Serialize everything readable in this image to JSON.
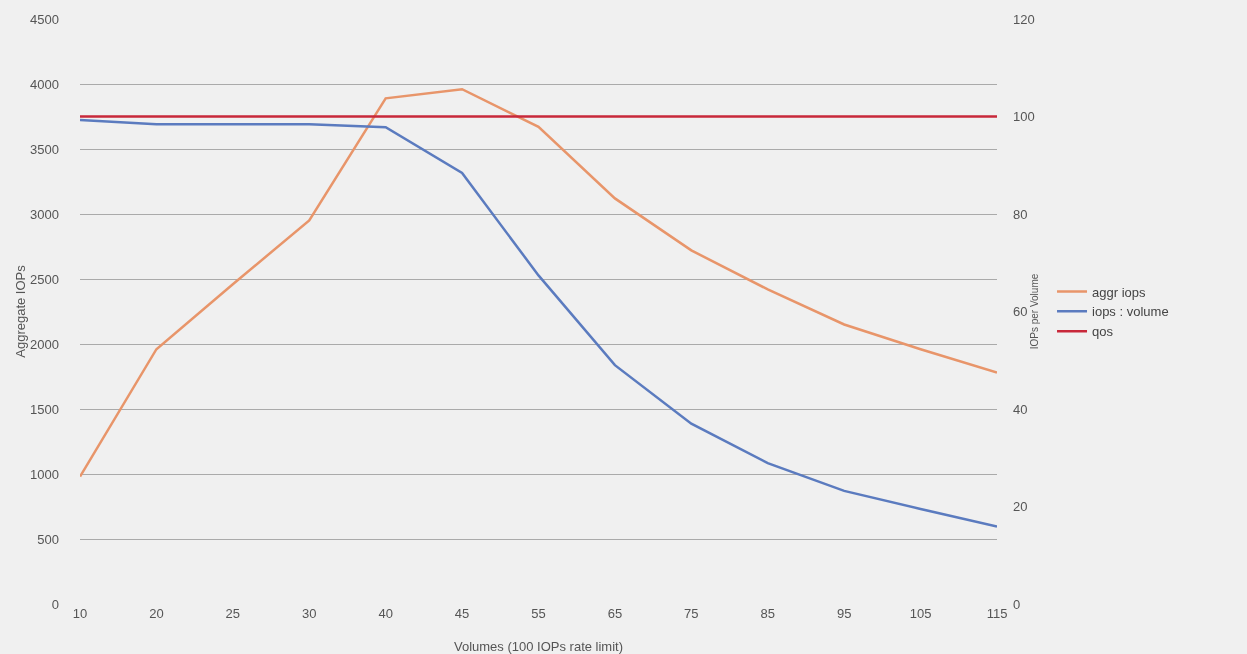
{
  "chart_data": {
    "type": "line",
    "xlabel": "Volumes (100 IOPs rate limit)",
    "ylabel": "Aggregate IOPs",
    "y2label": "IOPs per Volume",
    "categories": [
      "10",
      "20",
      "25",
      "30",
      "40",
      "45",
      "55",
      "65",
      "75",
      "85",
      "95",
      "105",
      "115"
    ],
    "series": [
      {
        "name": "aggr iops",
        "color": "#e8956a",
        "values": [
          980,
          1960,
          2460,
          2950,
          3890,
          3960,
          3670,
          3120,
          2720,
          2420,
          2150,
          1960,
          1780
        ]
      },
      {
        "name": "iops : volume",
        "color": "#5b7bbf",
        "axis": "y2",
        "values": [
          99.3,
          98.4,
          98.4,
          98.4,
          97.8,
          88.4,
          67.4,
          49,
          37,
          28.9,
          23.2,
          19.5,
          15.9
        ]
      },
      {
        "name": "qos",
        "color": "#c8283a",
        "axis": "y2",
        "values": [
          100,
          100,
          100,
          100,
          100,
          100,
          100,
          100,
          100,
          100,
          100,
          100,
          100
        ]
      }
    ],
    "ylim": [
      0,
      4500
    ],
    "yticks": [
      0,
      500,
      1000,
      1500,
      2000,
      2500,
      3000,
      3500,
      4000,
      4500
    ],
    "y2lim": [
      0,
      120
    ],
    "y2ticks": [
      0,
      20,
      40,
      60,
      80,
      100,
      120
    ],
    "grid": "y",
    "legend": "right",
    "marker": "none",
    "line_style": "solid"
  }
}
